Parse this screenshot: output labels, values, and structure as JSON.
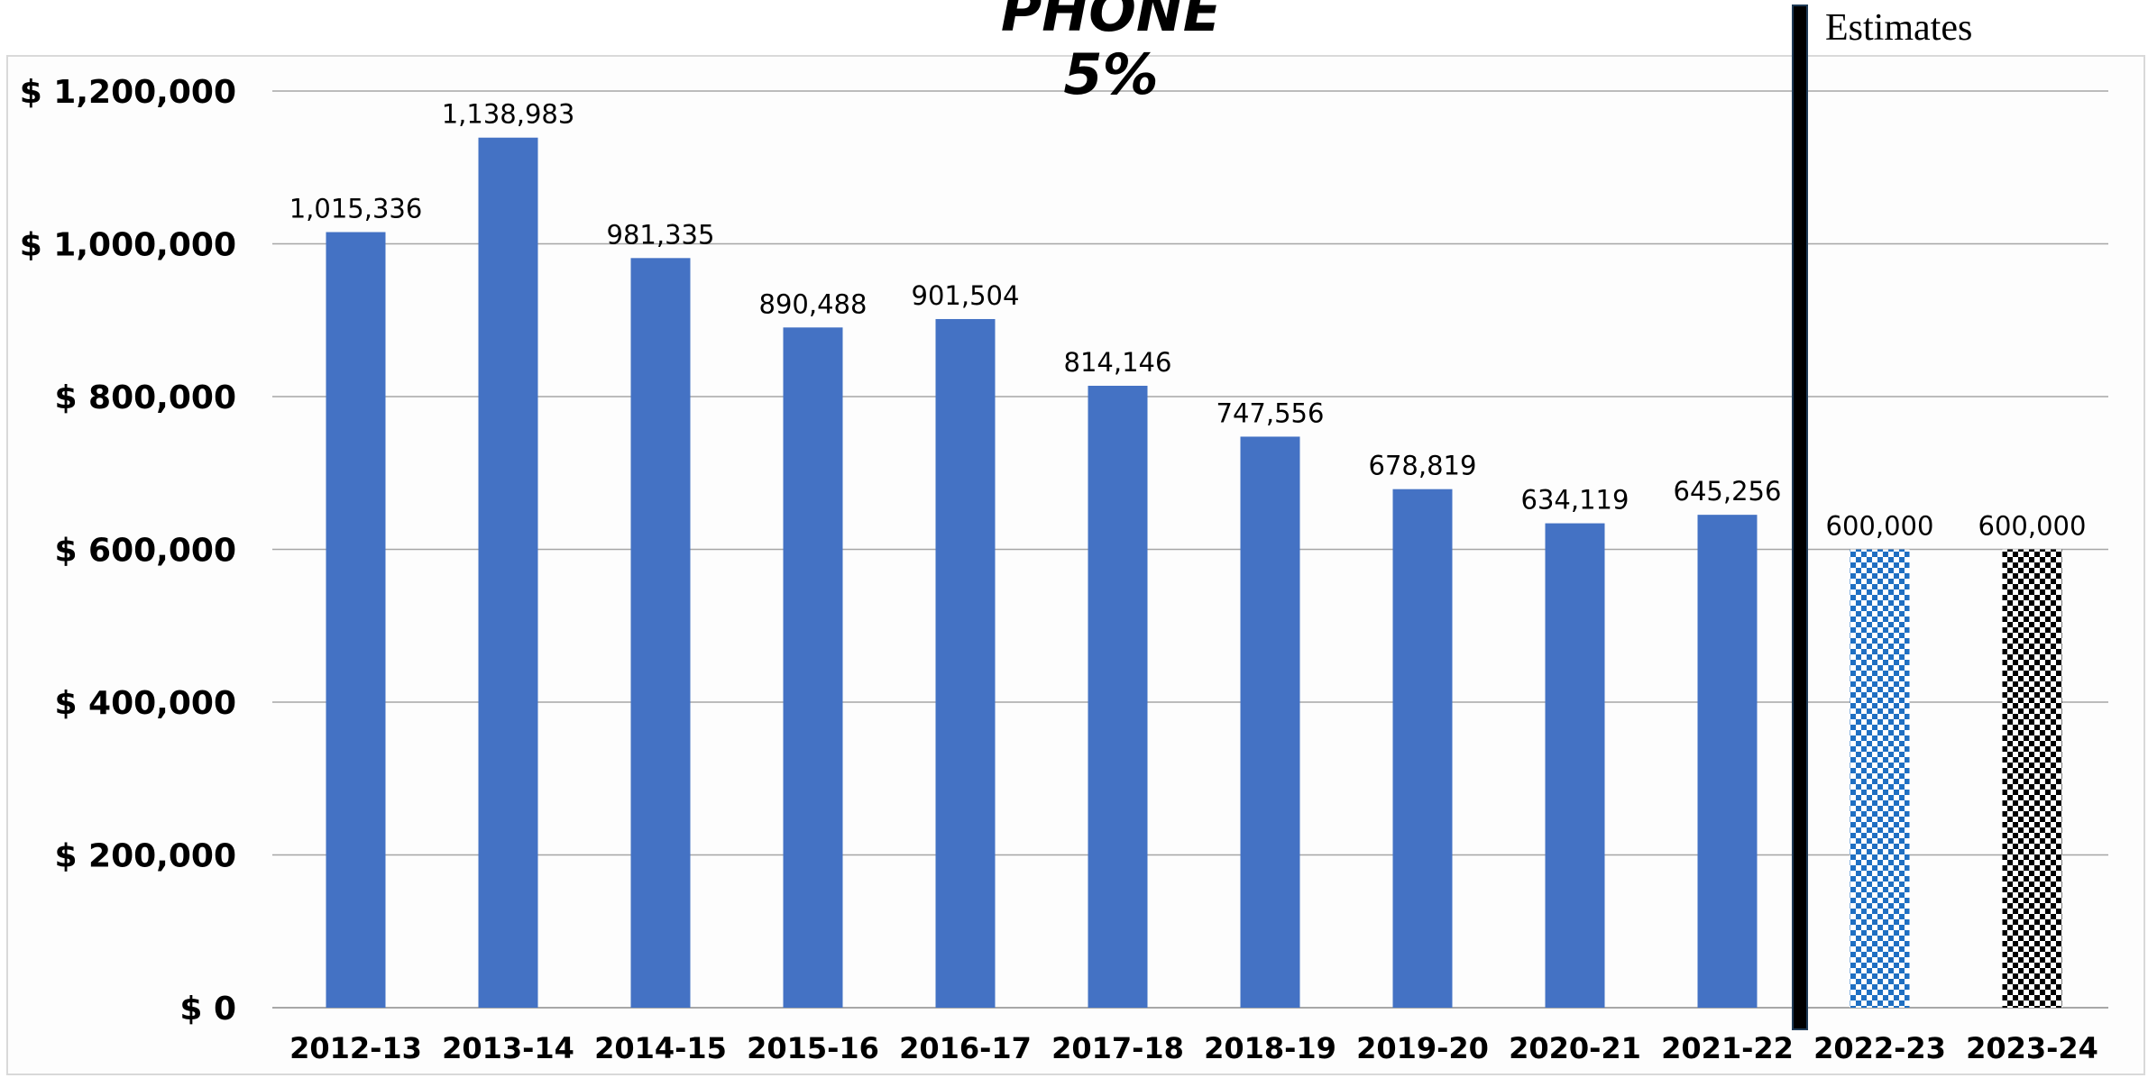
{
  "chart_data": {
    "type": "bar",
    "title_lines": [
      "PHONE",
      "5%"
    ],
    "xlabel": "",
    "ylabel": "",
    "categories": [
      "2012-13",
      "2013-14",
      "2014-15",
      "2015-16",
      "2016-17",
      "2017-18",
      "2018-19",
      "2019-20",
      "2020-21",
      "2021-22",
      "2022-23",
      "2023-24"
    ],
    "values": [
      1015336,
      1138983,
      981335,
      890488,
      901504,
      814146,
      747556,
      678819,
      634119,
      645256,
      600000,
      600000
    ],
    "data_labels": [
      "1,015,336",
      "1,138,983",
      "981,335",
      "890,488",
      "901,504",
      "814,146",
      "747,556",
      "678,819",
      "634,119",
      "645,256",
      "600,000",
      "600,000"
    ],
    "bar_styles": [
      "solid",
      "solid",
      "solid",
      "solid",
      "solid",
      "solid",
      "solid",
      "solid",
      "solid",
      "solid",
      "checker-blue",
      "checker-black"
    ],
    "ylim": [
      0,
      1200000
    ],
    "yticks": [
      0,
      200000,
      400000,
      600000,
      800000,
      1000000,
      1200000
    ],
    "ytick_labels": [
      "$ 0",
      "$ 200,000",
      "$ 400,000",
      "$ 600,000",
      "$ 800,000",
      "$ 1,000,000",
      "$ 1,200,000"
    ],
    "grid": true,
    "legend": "none",
    "annotation": "Estimates",
    "colors": {
      "bar": "#4472C4",
      "checker_blue": "#1F6FC2",
      "checker_black": "#000000",
      "grid": "#A6A6A6",
      "divider": "#000000",
      "divider_edge": "#1F3B57"
    }
  }
}
